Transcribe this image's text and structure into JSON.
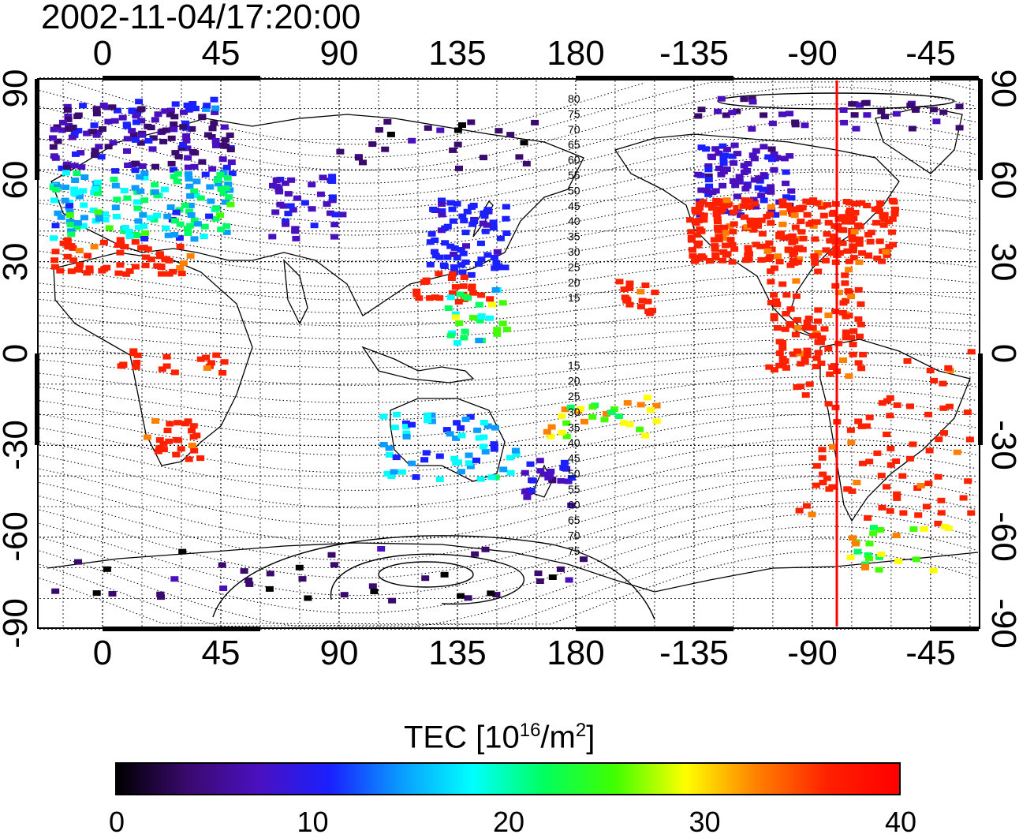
{
  "title": "2002-11-04/17:20:00",
  "map": {
    "x_tick_labels": [
      "0",
      "45",
      "90",
      "135",
      "180",
      "-135",
      "-90",
      "-45"
    ],
    "y_tick_labels": [
      "90",
      "60",
      "30",
      "0",
      "-30",
      "-60",
      "-90"
    ],
    "contour_labels_north": [
      "80",
      "75",
      "70",
      "65",
      "60",
      "55",
      "50",
      "45",
      "40",
      "35",
      "30",
      "25",
      "20",
      "15"
    ],
    "contour_labels_south": [
      "15",
      "20",
      "25",
      "30",
      "35",
      "40",
      "45",
      "50",
      "55",
      "60",
      "65",
      "70",
      "75"
    ],
    "terminator_line_color": "#ff0000",
    "terminator_longitude": -80
  },
  "colorbar": {
    "title_prefix": "TEC  [10",
    "title_sup1": "16",
    "title_mid": "/m",
    "title_sup2": "2",
    "title_suffix": "]",
    "ticks": [
      "0",
      "10",
      "20",
      "30",
      "40"
    ],
    "colors": [
      "#000000",
      "#3a0a6e",
      "#4a10c0",
      "#1a20ff",
      "#0a9cff",
      "#00ffff",
      "#00ff60",
      "#40ff00",
      "#ffff00",
      "#ff8000",
      "#ff2000",
      "#ff0000"
    ]
  }
}
